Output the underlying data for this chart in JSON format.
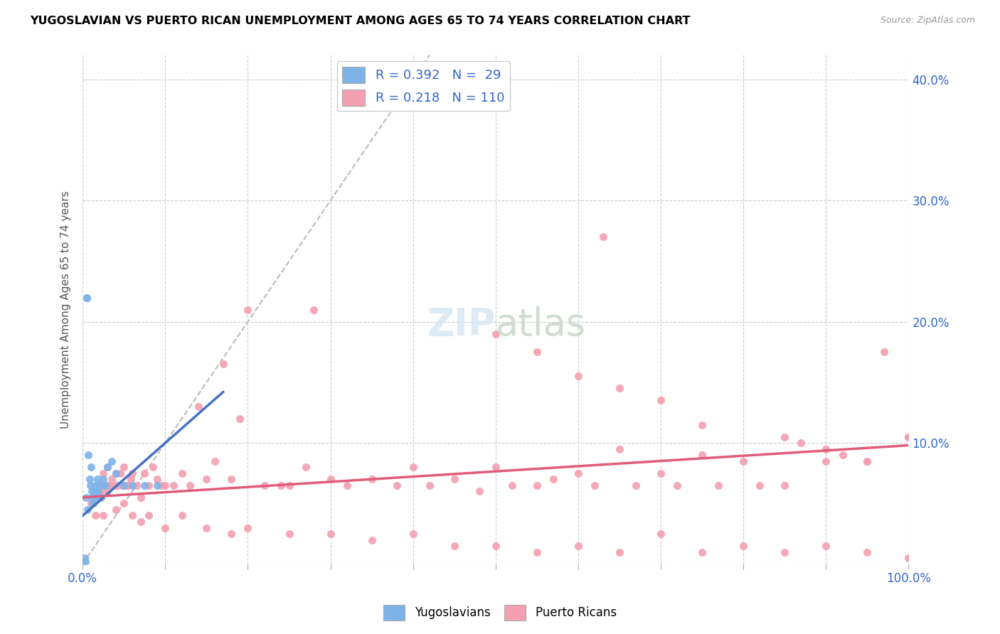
{
  "title": "YUGOSLAVIAN VS PUERTO RICAN UNEMPLOYMENT AMONG AGES 65 TO 74 YEARS CORRELATION CHART",
  "source": "Source: ZipAtlas.com",
  "ylabel": "Unemployment Among Ages 65 to 74 years",
  "xlim": [
    0,
    1.0
  ],
  "ylim": [
    0,
    0.42
  ],
  "x_ticks": [
    0.0,
    0.1,
    0.2,
    0.3,
    0.4,
    0.5,
    0.6,
    0.7,
    0.8,
    0.9,
    1.0
  ],
  "x_tick_labels": [
    "0.0%",
    "",
    "",
    "",
    "",
    "",
    "",
    "",
    "",
    "",
    "100.0%"
  ],
  "y_ticks": [
    0.0,
    0.1,
    0.2,
    0.3,
    0.4
  ],
  "y_tick_labels": [
    "",
    "10.0%",
    "20.0%",
    "30.0%",
    "40.0%"
  ],
  "yug_color": "#7EB3E8",
  "pr_color": "#F4A0B0",
  "yug_line_color": "#4472C4",
  "pr_line_color": "#E05C7A",
  "diag_color": "#BBBBBB",
  "legend_yug_label": "R = 0.392   N =  29",
  "legend_pr_label": "R = 0.218   N = 110",
  "legend_footer_yug": "Yugoslavians",
  "legend_footer_pr": "Puerto Ricans",
  "r_yug": 0.392,
  "n_yug": 29,
  "r_pr": 0.218,
  "n_pr": 110,
  "yug_x": [
    0.002,
    0.004,
    0.005,
    0.006,
    0.007,
    0.008,
    0.009,
    0.01,
    0.011,
    0.012,
    0.013,
    0.014,
    0.015,
    0.016,
    0.018,
    0.019,
    0.021,
    0.022,
    0.025,
    0.027,
    0.03,
    0.035,
    0.04,
    0.05,
    0.06,
    0.075,
    0.09,
    0.005,
    0.003
  ],
  "yug_y": [
    0.005,
    0.055,
    0.22,
    0.045,
    0.09,
    0.07,
    0.065,
    0.08,
    0.06,
    0.055,
    0.05,
    0.06,
    0.065,
    0.055,
    0.07,
    0.06,
    0.065,
    0.055,
    0.07,
    0.065,
    0.08,
    0.085,
    0.075,
    0.065,
    0.065,
    0.065,
    0.065,
    0.22,
    0.002
  ],
  "pr_x": [
    0.01,
    0.015,
    0.02,
    0.022,
    0.025,
    0.028,
    0.03,
    0.032,
    0.035,
    0.038,
    0.04,
    0.042,
    0.045,
    0.048,
    0.05,
    0.052,
    0.055,
    0.058,
    0.06,
    0.065,
    0.07,
    0.075,
    0.08,
    0.085,
    0.09,
    0.095,
    0.1,
    0.11,
    0.12,
    0.13,
    0.14,
    0.15,
    0.16,
    0.17,
    0.18,
    0.19,
    0.2,
    0.22,
    0.24,
    0.25,
    0.27,
    0.3,
    0.32,
    0.35,
    0.38,
    0.4,
    0.42,
    0.45,
    0.48,
    0.5,
    0.52,
    0.55,
    0.57,
    0.6,
    0.62,
    0.65,
    0.67,
    0.7,
    0.72,
    0.75,
    0.77,
    0.8,
    0.82,
    0.85,
    0.87,
    0.9,
    0.92,
    0.95,
    0.97,
    1.0,
    0.025,
    0.03,
    0.04,
    0.05,
    0.06,
    0.07,
    0.08,
    0.1,
    0.12,
    0.15,
    0.18,
    0.2,
    0.25,
    0.3,
    0.35,
    0.4,
    0.45,
    0.5,
    0.55,
    0.6,
    0.65,
    0.7,
    0.75,
    0.8,
    0.85,
    0.9,
    0.95,
    1.0,
    0.63,
    0.28,
    0.5,
    0.55,
    0.6,
    0.65,
    0.7,
    0.75,
    0.85,
    0.9,
    0.95,
    1.0
  ],
  "pr_y": [
    0.05,
    0.04,
    0.065,
    0.06,
    0.075,
    0.065,
    0.08,
    0.065,
    0.07,
    0.065,
    0.075,
    0.065,
    0.075,
    0.065,
    0.08,
    0.065,
    0.065,
    0.07,
    0.075,
    0.065,
    0.055,
    0.075,
    0.065,
    0.08,
    0.07,
    0.065,
    0.065,
    0.065,
    0.075,
    0.065,
    0.13,
    0.07,
    0.085,
    0.165,
    0.07,
    0.12,
    0.21,
    0.065,
    0.065,
    0.065,
    0.08,
    0.07,
    0.065,
    0.07,
    0.065,
    0.08,
    0.065,
    0.07,
    0.06,
    0.08,
    0.065,
    0.065,
    0.07,
    0.075,
    0.065,
    0.095,
    0.065,
    0.075,
    0.065,
    0.09,
    0.065,
    0.085,
    0.065,
    0.065,
    0.1,
    0.085,
    0.09,
    0.085,
    0.175,
    0.105,
    0.04,
    0.06,
    0.045,
    0.05,
    0.04,
    0.035,
    0.04,
    0.03,
    0.04,
    0.03,
    0.025,
    0.03,
    0.025,
    0.025,
    0.02,
    0.025,
    0.015,
    0.015,
    0.01,
    0.015,
    0.01,
    0.025,
    0.01,
    0.015,
    0.01,
    0.015,
    0.01,
    0.005,
    0.27,
    0.21,
    0.19,
    0.175,
    0.155,
    0.145,
    0.135,
    0.115,
    0.105,
    0.095,
    0.085,
    0.105
  ]
}
